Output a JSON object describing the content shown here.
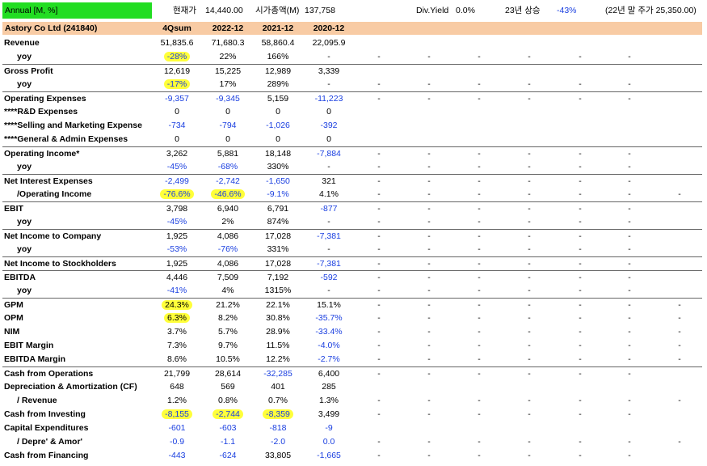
{
  "header": {
    "period": "Annual [M, %]",
    "price_label": "현재가",
    "price": "14,440.00",
    "mcap_label": "시가총액(M)",
    "mcap": "137,758",
    "div_label": "Div.Yield",
    "div": "0.0%",
    "chg_label": "23년 상승",
    "chg": "-43%",
    "prev_close": "(22년 말 주가 25,350.00)"
  },
  "company": {
    "name": "Astory Co Ltd (241840)",
    "columns": [
      "4Qsum",
      "2022-12",
      "2021-12",
      "2020-12"
    ]
  },
  "rows": [
    {
      "name": "Revenue",
      "vals": [
        "51,835.6",
        "71,680.3",
        "58,860.4",
        "22,095.9"
      ],
      "blue": [
        false,
        false,
        false,
        false
      ],
      "hl": [
        false,
        false,
        false,
        false
      ],
      "dashes": 0,
      "indent": false,
      "sep": false
    },
    {
      "name": "yoy",
      "vals": [
        "-28%",
        "22%",
        "166%",
        "-"
      ],
      "blue": [
        true,
        false,
        false,
        false
      ],
      "hl": [
        true,
        false,
        false,
        false
      ],
      "dashes": 6,
      "indent": true,
      "sep": false
    },
    {
      "name": "Gross Profit",
      "vals": [
        "12,619",
        "15,225",
        "12,989",
        "3,339"
      ],
      "blue": [
        false,
        false,
        false,
        false
      ],
      "hl": [
        false,
        false,
        false,
        false
      ],
      "dashes": 0,
      "indent": false,
      "sep": true
    },
    {
      "name": "yoy",
      "vals": [
        "-17%",
        "17%",
        "289%",
        "-"
      ],
      "blue": [
        true,
        false,
        false,
        false
      ],
      "hl": [
        true,
        false,
        false,
        false
      ],
      "dashes": 6,
      "indent": true,
      "sep": false
    },
    {
      "name": "Operating Expenses",
      "vals": [
        "-9,357",
        "-9,345",
        "5,159",
        "-11,223"
      ],
      "blue": [
        true,
        true,
        false,
        true
      ],
      "hl": [
        false,
        false,
        false,
        false
      ],
      "dashes": 6,
      "indent": false,
      "sep": true
    },
    {
      "name": "****R&D Expenses",
      "vals": [
        "0",
        "0",
        "0",
        "0"
      ],
      "blue": [
        false,
        false,
        false,
        false
      ],
      "hl": [
        false,
        false,
        false,
        false
      ],
      "dashes": 0,
      "indent": false,
      "sep": false
    },
    {
      "name": "****Selling and Marketing Expense",
      "vals": [
        "-734",
        "-794",
        "-1,026",
        "-392"
      ],
      "blue": [
        true,
        true,
        true,
        true
      ],
      "hl": [
        false,
        false,
        false,
        false
      ],
      "dashes": 0,
      "indent": false,
      "sep": false
    },
    {
      "name": "****General & Admin Expenses",
      "vals": [
        "0",
        "0",
        "0",
        "0"
      ],
      "blue": [
        false,
        false,
        false,
        false
      ],
      "hl": [
        false,
        false,
        false,
        false
      ],
      "dashes": 0,
      "indent": false,
      "sep": false
    },
    {
      "name": "Operating Income*",
      "vals": [
        "3,262",
        "5,881",
        "18,148",
        "-7,884"
      ],
      "blue": [
        false,
        false,
        false,
        true
      ],
      "hl": [
        false,
        false,
        false,
        false
      ],
      "dashes": 6,
      "indent": false,
      "sep": true
    },
    {
      "name": "yoy",
      "vals": [
        "-45%",
        "-68%",
        "330%",
        "-"
      ],
      "blue": [
        true,
        true,
        false,
        false
      ],
      "hl": [
        false,
        false,
        false,
        false
      ],
      "dashes": 6,
      "indent": true,
      "sep": false
    },
    {
      "name": "Net Interest Expenses",
      "vals": [
        "-2,499",
        "-2,742",
        "-1,650",
        "321"
      ],
      "blue": [
        true,
        true,
        true,
        false
      ],
      "hl": [
        false,
        false,
        false,
        false
      ],
      "dashes": 6,
      "indent": false,
      "sep": true
    },
    {
      "name": "/Operating Income",
      "vals": [
        "-76.6%",
        "-46.6%",
        "-9.1%",
        "4.1%"
      ],
      "blue": [
        true,
        true,
        true,
        false
      ],
      "hl": [
        true,
        true,
        false,
        false
      ],
      "dashes": 7,
      "indent": true,
      "sep": false
    },
    {
      "name": "EBIT",
      "vals": [
        "3,798",
        "6,940",
        "6,791",
        "-877"
      ],
      "blue": [
        false,
        false,
        false,
        true
      ],
      "hl": [
        false,
        false,
        false,
        false
      ],
      "dashes": 6,
      "indent": false,
      "sep": true
    },
    {
      "name": "yoy",
      "vals": [
        "-45%",
        "2%",
        "874%",
        "-"
      ],
      "blue": [
        true,
        false,
        false,
        false
      ],
      "hl": [
        false,
        false,
        false,
        false
      ],
      "dashes": 6,
      "indent": true,
      "sep": false
    },
    {
      "name": "Net Income to Company",
      "vals": [
        "1,925",
        "4,086",
        "17,028",
        "-7,381"
      ],
      "blue": [
        false,
        false,
        false,
        true
      ],
      "hl": [
        false,
        false,
        false,
        false
      ],
      "dashes": 6,
      "indent": false,
      "sep": true
    },
    {
      "name": "yoy",
      "vals": [
        "-53%",
        "-76%",
        "331%",
        "-"
      ],
      "blue": [
        true,
        true,
        false,
        false
      ],
      "hl": [
        false,
        false,
        false,
        false
      ],
      "dashes": 6,
      "indent": true,
      "sep": false
    },
    {
      "name": "Net Income to Stockholders",
      "vals": [
        "1,925",
        "4,086",
        "17,028",
        "-7,381"
      ],
      "blue": [
        false,
        false,
        false,
        true
      ],
      "hl": [
        false,
        false,
        false,
        false
      ],
      "dashes": 6,
      "indent": false,
      "sep": true
    },
    {
      "name": "EBITDA",
      "vals": [
        "4,446",
        "7,509",
        "7,192",
        "-592"
      ],
      "blue": [
        false,
        false,
        false,
        true
      ],
      "hl": [
        false,
        false,
        false,
        false
      ],
      "dashes": 6,
      "indent": false,
      "sep": true
    },
    {
      "name": "yoy",
      "vals": [
        "-41%",
        "4%",
        "1315%",
        "-"
      ],
      "blue": [
        true,
        false,
        false,
        false
      ],
      "hl": [
        false,
        false,
        false,
        false
      ],
      "dashes": 6,
      "indent": true,
      "sep": false
    },
    {
      "name": "GPM",
      "vals": [
        "24.3%",
        "21.2%",
        "22.1%",
        "15.1%"
      ],
      "blue": [
        false,
        false,
        false,
        false
      ],
      "hl": [
        true,
        false,
        false,
        false
      ],
      "dashes": 7,
      "indent": false,
      "sep": true
    },
    {
      "name": "OPM",
      "vals": [
        "6.3%",
        "8.2%",
        "30.8%",
        "-35.7%"
      ],
      "blue": [
        false,
        false,
        false,
        true
      ],
      "hl": [
        true,
        false,
        false,
        false
      ],
      "dashes": 7,
      "indent": false,
      "sep": false
    },
    {
      "name": "NIM",
      "vals": [
        "3.7%",
        "5.7%",
        "28.9%",
        "-33.4%"
      ],
      "blue": [
        false,
        false,
        false,
        true
      ],
      "hl": [
        false,
        false,
        false,
        false
      ],
      "dashes": 7,
      "indent": false,
      "sep": false
    },
    {
      "name": "EBIT Margin",
      "vals": [
        "7.3%",
        "9.7%",
        "11.5%",
        "-4.0%"
      ],
      "blue": [
        false,
        false,
        false,
        true
      ],
      "hl": [
        false,
        false,
        false,
        false
      ],
      "dashes": 7,
      "indent": false,
      "sep": false
    },
    {
      "name": "EBITDA Margin",
      "vals": [
        "8.6%",
        "10.5%",
        "12.2%",
        "-2.7%"
      ],
      "blue": [
        false,
        false,
        false,
        true
      ],
      "hl": [
        false,
        false,
        false,
        false
      ],
      "dashes": 7,
      "indent": false,
      "sep": false
    },
    {
      "name": "Cash from Operations",
      "vals": [
        "21,799",
        "28,614",
        "-32,285",
        "6,400"
      ],
      "blue": [
        false,
        false,
        true,
        false
      ],
      "hl": [
        false,
        false,
        false,
        false
      ],
      "dashes": 6,
      "indent": false,
      "sep": true
    },
    {
      "name": "Depreciation & Amortization (CF)",
      "vals": [
        "648",
        "569",
        "401",
        "285"
      ],
      "blue": [
        false,
        false,
        false,
        false
      ],
      "hl": [
        false,
        false,
        false,
        false
      ],
      "dashes": 0,
      "indent": false,
      "sep": false
    },
    {
      "name": "/ Revenue",
      "vals": [
        "1.2%",
        "0.8%",
        "0.7%",
        "1.3%"
      ],
      "blue": [
        false,
        false,
        false,
        false
      ],
      "hl": [
        false,
        false,
        false,
        false
      ],
      "dashes": 7,
      "indent": true,
      "sep": false
    },
    {
      "name": "Cash from Investing",
      "vals": [
        "-8,155",
        "-2,744",
        "-8,359",
        "3,499"
      ],
      "blue": [
        true,
        true,
        true,
        false
      ],
      "hl": [
        true,
        true,
        true,
        false
      ],
      "dashes": 6,
      "indent": false,
      "sep": false
    },
    {
      "name": "Capital Expenditures",
      "vals": [
        "-601",
        "-603",
        "-818",
        "-9"
      ],
      "blue": [
        true,
        true,
        true,
        true
      ],
      "hl": [
        false,
        false,
        false,
        false
      ],
      "dashes": 0,
      "indent": false,
      "sep": false
    },
    {
      "name": "/ Depre' & Amor'",
      "vals": [
        "-0.9",
        "-1.1",
        "-2.0",
        "0.0"
      ],
      "blue": [
        true,
        true,
        true,
        true
      ],
      "hl": [
        false,
        false,
        false,
        false
      ],
      "dashes": 7,
      "indent": true,
      "sep": false
    },
    {
      "name": "Cash from Financing",
      "vals": [
        "-443",
        "-624",
        "33,805",
        "-1,665"
      ],
      "blue": [
        true,
        true,
        false,
        true
      ],
      "hl": [
        false,
        false,
        false,
        false
      ],
      "dashes": 6,
      "indent": false,
      "sep": false
    }
  ],
  "dash_char": "-",
  "colors": {
    "header_green": "#22dd22",
    "company_band": "#f8cba4",
    "negative_blue": "#1a3fe0",
    "highlight": "#ffff3a"
  }
}
